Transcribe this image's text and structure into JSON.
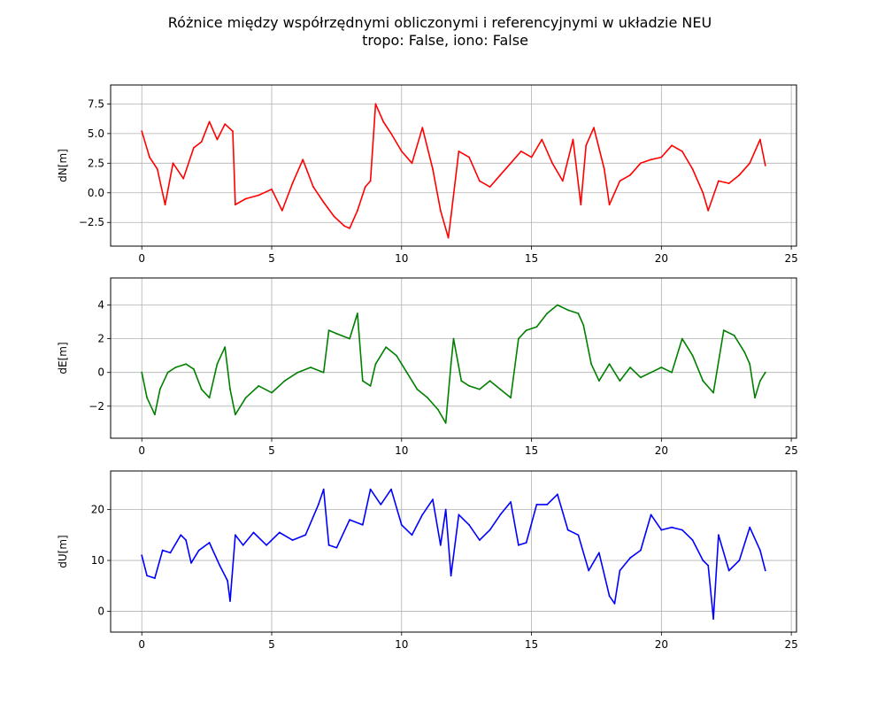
{
  "figure": {
    "title_line1": "Różnice między współrzędnymi obliczonymi i referencyjnymi w układzie NEU",
    "title_line2": "tropo: False, iono: False"
  },
  "chart_data": [
    {
      "type": "line",
      "ylabel": "dN[m]",
      "color": "#ff0000",
      "xlim": [
        -1.2,
        25.2
      ],
      "ylim": [
        -4.5,
        9.1
      ],
      "xticks": [
        0,
        5,
        10,
        15,
        20,
        25
      ],
      "yticks": [
        -2.5,
        0.0,
        2.5,
        5.0,
        7.5
      ],
      "ytick_labels": [
        "−2.5",
        "0.0",
        "2.5",
        "5.0",
        "7.5"
      ],
      "grid": true,
      "series": [
        {
          "x": [
            0,
            0.3,
            0.6,
            0.9,
            1.2,
            1.6,
            2.0,
            2.3,
            2.6,
            2.9,
            3.2,
            3.5,
            3.6,
            4.0,
            4.5,
            5.0,
            5.4,
            5.8,
            6.2,
            6.6,
            7.0,
            7.4,
            7.8,
            8.0,
            8.3,
            8.6,
            8.8,
            9.0,
            9.3,
            9.6,
            10.0,
            10.4,
            10.8,
            11.2,
            11.5,
            11.8,
            11.9,
            12.2,
            12.6,
            13.0,
            13.4,
            13.8,
            14.2,
            14.6,
            15.0,
            15.4,
            15.8,
            16.2,
            16.6,
            16.9,
            17.1,
            17.4,
            17.8,
            18.0,
            18.2,
            18.4,
            18.8,
            19.2,
            19.6,
            20.0,
            20.4,
            20.8,
            21.2,
            21.6,
            21.8,
            22.2,
            22.6,
            23.0,
            23.4,
            23.8,
            24.0
          ],
          "values": [
            5.2,
            3.0,
            2.0,
            -1.0,
            2.5,
            1.2,
            3.8,
            4.3,
            6.0,
            4.5,
            5.8,
            5.2,
            -1.0,
            -0.5,
            -0.2,
            0.3,
            -1.5,
            0.8,
            2.8,
            0.5,
            -0.8,
            -2.0,
            -2.8,
            -3.0,
            -1.5,
            0.5,
            1.0,
            7.5,
            6.0,
            5.0,
            3.5,
            2.5,
            5.5,
            2.0,
            -1.5,
            -3.8,
            -2.0,
            3.5,
            3.0,
            1.0,
            0.5,
            1.5,
            2.5,
            3.5,
            3.0,
            4.5,
            2.5,
            1.0,
            4.5,
            -1.0,
            4.0,
            5.5,
            2.0,
            -1.0,
            0.0,
            1.0,
            1.5,
            2.5,
            2.8,
            3.0,
            4.0,
            3.5,
            2.0,
            0.0,
            -1.5,
            1.0,
            0.8,
            1.5,
            2.5,
            4.5,
            2.3
          ]
        }
      ]
    },
    {
      "type": "line",
      "ylabel": "dE[m]",
      "color": "#008000",
      "xlim": [
        -1.2,
        25.2
      ],
      "ylim": [
        -3.9,
        5.6
      ],
      "xticks": [
        0,
        5,
        10,
        15,
        20,
        25
      ],
      "yticks": [
        -2,
        0,
        2,
        4
      ],
      "ytick_labels": [
        "−2",
        "0",
        "2",
        "4"
      ],
      "grid": true,
      "series": [
        {
          "x": [
            0,
            0.2,
            0.5,
            0.7,
            1.0,
            1.3,
            1.7,
            2.0,
            2.3,
            2.6,
            2.9,
            3.2,
            3.4,
            3.6,
            4.0,
            4.5,
            5.0,
            5.5,
            6.0,
            6.5,
            7.0,
            7.2,
            7.5,
            8.0,
            8.3,
            8.5,
            8.8,
            9.0,
            9.4,
            9.8,
            10.2,
            10.6,
            11.0,
            11.4,
            11.7,
            11.9,
            12.0,
            12.3,
            12.6,
            13.0,
            13.4,
            13.8,
            14.2,
            14.5,
            14.8,
            15.2,
            15.6,
            16.0,
            16.4,
            16.8,
            17.0,
            17.3,
            17.6,
            18.0,
            18.4,
            18.8,
            19.2,
            19.6,
            20.0,
            20.4,
            20.8,
            21.2,
            21.6,
            22.0,
            22.4,
            22.8,
            23.2,
            23.4,
            23.6,
            23.8,
            24.0
          ],
          "values": [
            0.0,
            -1.5,
            -2.5,
            -1.0,
            0.0,
            0.3,
            0.5,
            0.2,
            -1.0,
            -1.5,
            0.5,
            1.5,
            -1.0,
            -2.5,
            -1.5,
            -0.8,
            -1.2,
            -0.5,
            0.0,
            0.3,
            0.0,
            2.5,
            2.3,
            2.0,
            3.5,
            -0.5,
            -0.8,
            0.5,
            1.5,
            1.0,
            0.0,
            -1.0,
            -1.5,
            -2.2,
            -3.0,
            0.5,
            2.0,
            -0.5,
            -0.8,
            -1.0,
            -0.5,
            -1.0,
            -1.5,
            2.0,
            2.5,
            2.7,
            3.5,
            4.0,
            3.7,
            3.5,
            2.8,
            0.5,
            -0.5,
            0.5,
            -0.5,
            0.3,
            -0.3,
            0.0,
            0.3,
            0.0,
            2.0,
            1.0,
            -0.5,
            -1.2,
            2.5,
            2.2,
            1.2,
            0.5,
            -1.5,
            -0.5,
            0.0
          ]
        }
      ]
    },
    {
      "type": "line",
      "ylabel": "dU[m]",
      "color": "#0000ff",
      "xlim": [
        -1.2,
        25.2
      ],
      "ylim": [
        -4.1,
        27.6
      ],
      "xticks": [
        0,
        5,
        10,
        15,
        20,
        25
      ],
      "yticks": [
        0,
        10,
        20
      ],
      "ytick_labels": [
        "0",
        "10",
        "20"
      ],
      "grid": true,
      "series": [
        {
          "x": [
            0,
            0.2,
            0.5,
            0.8,
            1.1,
            1.5,
            1.7,
            1.9,
            2.2,
            2.6,
            3.0,
            3.3,
            3.4,
            3.6,
            3.9,
            4.3,
            4.8,
            5.3,
            5.8,
            6.3,
            6.8,
            7.0,
            7.2,
            7.5,
            8.0,
            8.5,
            8.8,
            9.2,
            9.6,
            10.0,
            10.4,
            10.8,
            11.2,
            11.5,
            11.7,
            11.9,
            12.2,
            12.6,
            13.0,
            13.4,
            13.8,
            14.2,
            14.5,
            14.8,
            15.2,
            15.6,
            16.0,
            16.4,
            16.8,
            17.2,
            17.6,
            18.0,
            18.2,
            18.4,
            18.8,
            19.2,
            19.6,
            20.0,
            20.4,
            20.8,
            21.2,
            21.6,
            21.8,
            22.0,
            22.2,
            22.6,
            23.0,
            23.4,
            23.8,
            24.0
          ],
          "values": [
            11.0,
            7.0,
            6.5,
            12.0,
            11.5,
            15.0,
            14.0,
            9.5,
            12.0,
            13.5,
            9.0,
            6.0,
            2.0,
            15.0,
            13.0,
            15.5,
            13.0,
            15.5,
            14.0,
            15.0,
            21.0,
            24.0,
            13.0,
            12.5,
            18.0,
            17.0,
            24.0,
            21.0,
            24.0,
            17.0,
            15.0,
            19.0,
            22.0,
            13.0,
            20.0,
            7.0,
            19.0,
            17.0,
            14.0,
            16.0,
            19.0,
            21.5,
            13.0,
            13.5,
            21.0,
            21.0,
            23.0,
            16.0,
            15.0,
            8.0,
            11.5,
            3.0,
            1.5,
            8.0,
            10.5,
            12.0,
            19.0,
            16.0,
            16.5,
            16.0,
            14.0,
            10.0,
            9.0,
            -1.5,
            15.0,
            8.0,
            10.0,
            16.5,
            12.0,
            8.0
          ]
        }
      ]
    }
  ]
}
